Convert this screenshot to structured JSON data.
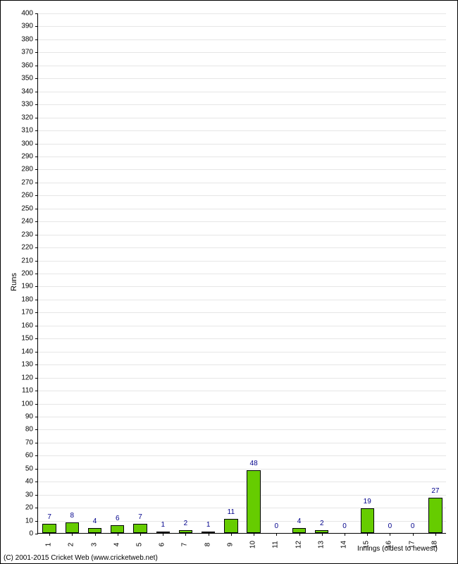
{
  "chart": {
    "type": "bar",
    "ylabel": "Runs",
    "xlabel": "Innings (oldest to newest)",
    "ylim": [
      0,
      400
    ],
    "ytick_step": 10,
    "bar_color": "#66cc00",
    "bar_border_color": "#000000",
    "bar_width": 0.6,
    "background_color": "#ffffff",
    "grid_color": "#e6e6e6",
    "axis_color": "#000000",
    "label_color": "#00008b",
    "tick_fontsize": 10,
    "label_fontsize": 10,
    "categories": [
      "1",
      "2",
      "3",
      "4",
      "5",
      "6",
      "7",
      "8",
      "9",
      "10",
      "11",
      "12",
      "13",
      "14",
      "15",
      "16",
      "17",
      "18"
    ],
    "values": [
      7,
      8,
      4,
      6,
      7,
      1,
      2,
      1,
      11,
      48,
      0,
      4,
      2,
      0,
      19,
      0,
      0,
      27
    ]
  },
  "footer": "(C) 2001-2015 Cricket Web (www.cricketweb.net)"
}
